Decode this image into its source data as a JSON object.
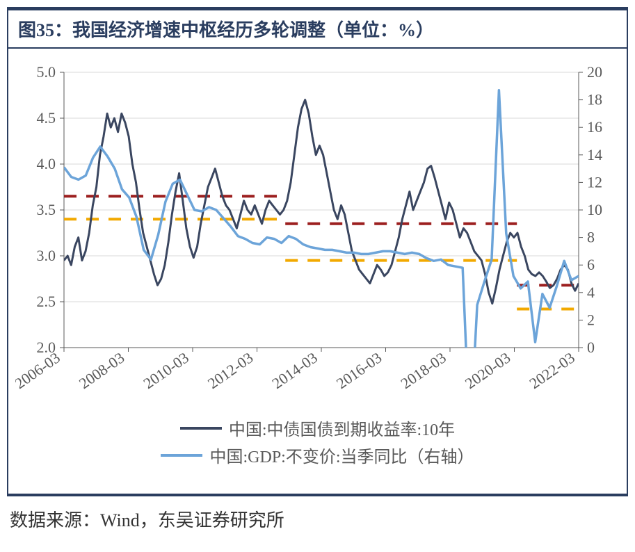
{
  "title": "图35：我国经济增速中枢经历多轮调整（单位：%）",
  "source": "数据来源：Wind，东吴证券研究所",
  "chart": {
    "type": "line-dual-axis",
    "background_color": "#ffffff",
    "grid_color": "#d9d9d9",
    "axis_text_color": "#595959",
    "left_axis": {
      "min": 2.0,
      "max": 5.0,
      "ticks": [
        "2.0",
        "2.5",
        "3.0",
        "3.5",
        "4.0",
        "4.5",
        "5.0"
      ]
    },
    "right_axis": {
      "min": 0,
      "max": 20,
      "ticks": [
        "0",
        "2",
        "4",
        "6",
        "8",
        "10",
        "12",
        "14",
        "16",
        "18",
        "20"
      ]
    },
    "x_labels": [
      "2006-03",
      "2008-03",
      "2010-03",
      "2012-03",
      "2014-03",
      "2016-03",
      "2018-03",
      "2020-03",
      "2022-03"
    ],
    "series_bond": {
      "name": "中国:中债国债到期收益率:10年",
      "color": "#3a4660",
      "line_width": 3,
      "axis": "left",
      "data": [
        2.95,
        3.0,
        2.9,
        3.1,
        3.2,
        2.95,
        3.05,
        3.25,
        3.55,
        3.75,
        4.1,
        4.3,
        4.55,
        4.4,
        4.5,
        4.35,
        4.55,
        4.45,
        4.3,
        4.0,
        3.8,
        3.5,
        3.25,
        3.1,
        2.95,
        2.8,
        2.68,
        2.75,
        2.9,
        3.15,
        3.45,
        3.7,
        3.9,
        3.6,
        3.3,
        3.1,
        2.98,
        3.1,
        3.35,
        3.55,
        3.75,
        3.85,
        3.95,
        3.8,
        3.65,
        3.55,
        3.5,
        3.4,
        3.3,
        3.45,
        3.6,
        3.5,
        3.45,
        3.55,
        3.45,
        3.35,
        3.5,
        3.6,
        3.55,
        3.5,
        3.45,
        3.5,
        3.6,
        3.8,
        4.1,
        4.4,
        4.6,
        4.7,
        4.55,
        4.3,
        4.1,
        4.2,
        4.1,
        3.9,
        3.7,
        3.5,
        3.4,
        3.55,
        3.45,
        3.25,
        3.05,
        2.95,
        2.85,
        2.8,
        2.75,
        2.7,
        2.8,
        2.9,
        2.85,
        2.78,
        2.82,
        2.9,
        3.05,
        3.2,
        3.4,
        3.55,
        3.7,
        3.5,
        3.6,
        3.7,
        3.8,
        3.95,
        3.98,
        3.85,
        3.7,
        3.55,
        3.4,
        3.58,
        3.5,
        3.35,
        3.2,
        3.3,
        3.25,
        3.15,
        3.05,
        3.0,
        2.95,
        2.8,
        2.6,
        2.48,
        2.65,
        2.85,
        3.0,
        3.15,
        3.25,
        3.2,
        3.25,
        3.1,
        3.0,
        2.85,
        2.8,
        2.78,
        2.82,
        2.78,
        2.72,
        2.65,
        2.68,
        2.75,
        2.85,
        2.9,
        2.85,
        2.7,
        2.62,
        2.7
      ]
    },
    "series_gdp": {
      "name": "中国:GDP:不变价:当季同比（右轴）",
      "color": "#6ca4d9",
      "line_width": 3.5,
      "axis": "right",
      "data": [
        13.1,
        12.4,
        12.2,
        12.5,
        13.8,
        14.6,
        13.9,
        13,
        11.5,
        10.9,
        9.5,
        7.1,
        6.4,
        8.2,
        10.6,
        11.9,
        12.2,
        11.1,
        10.0,
        9.9,
        10.2,
        10.0,
        9.4,
        8.8,
        8.1,
        7.9,
        7.6,
        7.5,
        8.0,
        7.9,
        7.6,
        8.1,
        7.9,
        7.5,
        7.3,
        7.2,
        7.1,
        7.1,
        7.0,
        6.9,
        6.9,
        6.8,
        6.8,
        6.9,
        7.0,
        7.0,
        6.9,
        6.8,
        6.9,
        6.8,
        6.5,
        6.3,
        6.4,
        6.0,
        5.9,
        5.8,
        -6.9,
        3.1,
        4.8,
        6.4,
        18.7,
        8.3,
        5.2,
        4.3,
        4.8,
        0.4,
        3.9,
        2.9,
        4.5,
        6.3,
        4.9,
        5.2
      ]
    },
    "ref_lines": {
      "red": {
        "color": "#9c1f1f",
        "width": 4,
        "dash": "18 14",
        "segments": [
          {
            "x0": 0.0,
            "x1": 0.43,
            "y": 3.65
          },
          {
            "x0": 0.43,
            "x1": 0.88,
            "y": 3.35
          },
          {
            "x0": 0.88,
            "x1": 1.0,
            "y": 2.68
          }
        ]
      },
      "orange": {
        "color": "#f2a900",
        "width": 4,
        "dash": "18 14",
        "segments": [
          {
            "x0": 0.0,
            "x1": 0.43,
            "y": 3.4
          },
          {
            "x0": 0.43,
            "x1": 0.88,
            "y": 2.95
          },
          {
            "x0": 0.88,
            "x1": 1.0,
            "y": 2.42
          }
        ]
      }
    },
    "legend": [
      {
        "label": "中国:中债国债到期收益率:10年",
        "color": "#3a4660"
      },
      {
        "label": "中国:GDP:不变价:当季同比（右轴）",
        "color": "#6ca4d9"
      }
    ]
  }
}
